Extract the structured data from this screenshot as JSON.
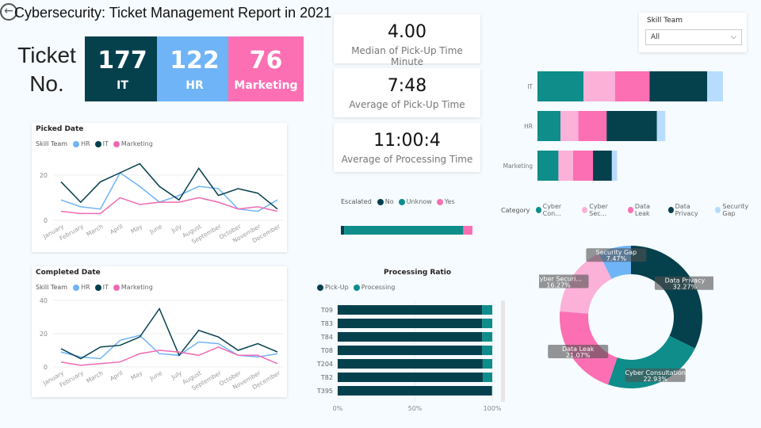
{
  "header": {
    "title": "Cybersecurity: Ticket Management Report in 2021",
    "back_icon": "back-arrow-icon"
  },
  "tickets": {
    "label_line1": "Ticket",
    "label_line2": "No.",
    "items": [
      {
        "value": "177",
        "team": "IT",
        "color": "#05404d"
      },
      {
        "value": "122",
        "team": "HR",
        "color": "#6eb4f7"
      },
      {
        "value": "76",
        "team": "Marketing",
        "color": "#fc6fb3"
      }
    ]
  },
  "metrics": [
    {
      "value": "4.00",
      "caption": "Median of Pick-Up Time Minute"
    },
    {
      "value": "7:48",
      "caption": "Average of Pick-Up Time"
    },
    {
      "value": "11:00:4",
      "caption": "Average of Processing Time"
    }
  ],
  "slicer": {
    "label": "Skill Team",
    "value": "All"
  },
  "colors": {
    "IT": "#05404d",
    "HR": "#6eb4f7",
    "Marketing": "#f06ab3",
    "teal": "#0e8d8b",
    "lightpink": "#fbb1d8",
    "pink": "#fc6fb3",
    "lightblue": "#b8dcfc"
  },
  "chart_data": [
    {
      "type": "line",
      "title": "Picked Date",
      "legend_title": "Skill Team",
      "ylim": [
        0,
        28
      ],
      "yticks": [
        0,
        20
      ],
      "categories": [
        "January",
        "February",
        "March",
        "April",
        "May",
        "June",
        "July",
        "August",
        "September",
        "October",
        "November",
        "December"
      ],
      "series": [
        {
          "name": "HR",
          "values": [
            9,
            6,
            5,
            21,
            15,
            8,
            11,
            15,
            14,
            5,
            4,
            9
          ]
        },
        {
          "name": "IT",
          "values": [
            17,
            8,
            17,
            21,
            25,
            15,
            9,
            23,
            11,
            14,
            12,
            5
          ]
        },
        {
          "name": "Marketing",
          "values": [
            4,
            3,
            3,
            10,
            7,
            8,
            8,
            10,
            8,
            5,
            6,
            4
          ]
        }
      ]
    },
    {
      "type": "line",
      "title": "Completed Date",
      "legend_title": "Skill Team",
      "ylim": [
        0,
        40
      ],
      "yticks": [
        0,
        20,
        40
      ],
      "categories": [
        "January",
        "February",
        "March",
        "April",
        "May",
        "June",
        "July",
        "August",
        "September",
        "October",
        "November",
        "December"
      ],
      "series": [
        {
          "name": "HR",
          "values": [
            9,
            6,
            5,
            16,
            19,
            8,
            7,
            15,
            14,
            7,
            6,
            8
          ]
        },
        {
          "name": "IT",
          "values": [
            11,
            5,
            12,
            13,
            18,
            35,
            7,
            22,
            18,
            10,
            14,
            9
          ]
        },
        {
          "name": "Marketing",
          "values": [
            3,
            1,
            2,
            3,
            8,
            10,
            9,
            7,
            12,
            7,
            7,
            2
          ]
        }
      ]
    },
    {
      "type": "bar",
      "stacked": true,
      "orientation": "horizontal",
      "legend_title": "Category",
      "categories": [
        "IT",
        "HR",
        "Marketing"
      ],
      "series": [
        {
          "name": "Cyber Con...",
          "values": [
            44,
            22,
            20
          ]
        },
        {
          "name": "Cyber Sec...",
          "values": [
            30,
            17,
            14
          ]
        },
        {
          "name": "Data Leak",
          "values": [
            33,
            27,
            19
          ]
        },
        {
          "name": "Data Privacy",
          "values": [
            55,
            48,
            18
          ]
        },
        {
          "name": "Security Gap",
          "values": [
            15,
            8,
            5
          ]
        }
      ]
    },
    {
      "type": "bar",
      "stacked": true,
      "orientation": "horizontal",
      "legend_title": "Escalated",
      "unit": "percent",
      "series": [
        {
          "name": "No",
          "values": [
            2.5
          ]
        },
        {
          "name": "Unknow",
          "values": [
            90.5
          ]
        },
        {
          "name": "Yes",
          "values": [
            7
          ]
        }
      ]
    },
    {
      "type": "bar",
      "stacked": true,
      "orientation": "horizontal",
      "title": "Processing Ratio",
      "xticks": [
        "0%",
        "50%",
        "100%"
      ],
      "categories": [
        "T09",
        "T83",
        "T84",
        "T08",
        "T204",
        "T82",
        "T395"
      ],
      "series": [
        {
          "name": "Pick-Up",
          "values": [
            93.5,
            93.5,
            93.5,
            93.5,
            93.8,
            94,
            99.5
          ]
        },
        {
          "name": "Processing",
          "values": [
            6.5,
            6.5,
            6.5,
            6.5,
            6.2,
            6,
            0.5
          ]
        }
      ]
    },
    {
      "type": "pie",
      "donut": true,
      "slices": [
        {
          "label": "Data Privacy",
          "value": 32.27,
          "text": "32.27%"
        },
        {
          "label": "Cyber Consultation",
          "value": 22.93,
          "text": "22.93%"
        },
        {
          "label": "Data Leak",
          "value": 21.07,
          "text": "21.07%"
        },
        {
          "label": "Cyber Securi...",
          "value": 16.27,
          "text": "16.27%"
        },
        {
          "label": "Security Gap",
          "value": 7.47,
          "text": "7.47%"
        }
      ]
    }
  ]
}
